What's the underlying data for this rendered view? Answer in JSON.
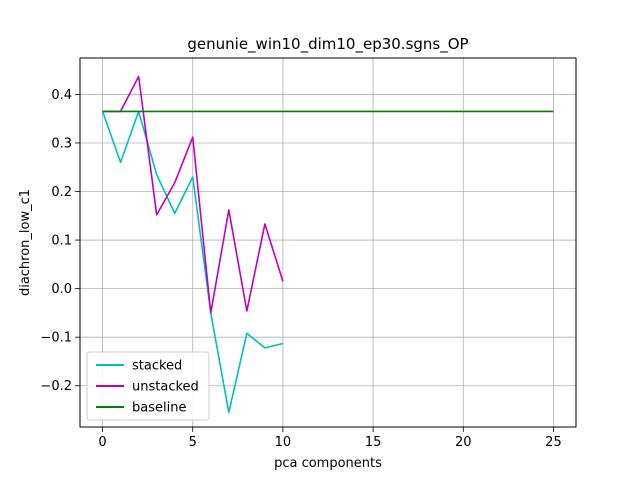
{
  "chart_data": {
    "type": "line",
    "title": "genunie_win10_dim10_ep30.sgns_OP",
    "xlabel": "pca components",
    "ylabel": "diachron_low_c1",
    "xlim": [
      -1.25,
      26.25
    ],
    "ylim": [
      -0.285,
      0.475
    ],
    "xticks": [
      0,
      5,
      10,
      15,
      20,
      25
    ],
    "yticks": [
      -0.2,
      -0.1,
      0.0,
      0.1,
      0.2,
      0.3,
      0.4
    ],
    "ytick_labels": [
      "−0.2",
      "−0.1",
      "0.0",
      "0.1",
      "0.2",
      "0.3",
      "0.4"
    ],
    "grid": true,
    "legend_position": "lower-left",
    "series": [
      {
        "name": "stacked",
        "color": "#00bfbf",
        "x": [
          0,
          1,
          2,
          3,
          4,
          5,
          6,
          7,
          8,
          9,
          10
        ],
        "y": [
          0.365,
          0.26,
          0.365,
          0.235,
          0.155,
          0.23,
          -0.05,
          -0.255,
          -0.092,
          -0.122,
          -0.113
        ]
      },
      {
        "name": "unstacked",
        "color": "#bf00bf",
        "x": [
          0,
          1,
          2,
          3,
          4,
          5,
          6,
          7,
          8,
          9,
          10
        ],
        "y": [
          0.365,
          0.365,
          0.437,
          0.152,
          0.218,
          0.312,
          -0.05,
          0.162,
          -0.046,
          0.133,
          0.015
        ]
      },
      {
        "name": "baseline",
        "color": "#008000",
        "x": [
          0,
          25
        ],
        "y": [
          0.365,
          0.365
        ]
      }
    ]
  }
}
